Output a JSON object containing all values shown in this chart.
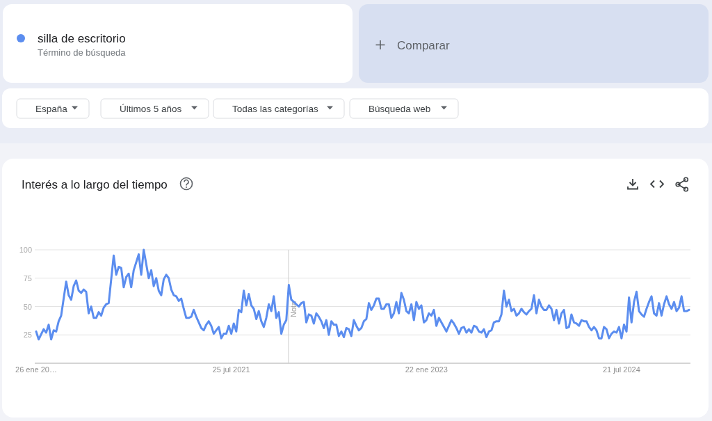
{
  "chart_data": {
    "type": "line",
    "title": "Interés a lo largo del tiempo",
    "x": [
      "2020-01-26",
      "2020-02-02",
      "2020-02-16",
      "2020-02-23",
      "2020-03-01",
      "2020-03-08",
      "2020-03-15",
      "2020-03-22",
      "2020-03-29",
      "2020-04-05",
      "2020-04-19",
      "2020-04-26",
      "2020-05-03",
      "2020-05-10",
      "2020-05-17",
      "2020-05-24",
      "2020-05-31",
      "2020-06-07",
      "2020-06-14",
      "2020-06-21",
      "2020-06-28",
      "2020-07-05",
      "2020-07-12",
      "2020-07-19",
      "2020-07-26",
      "2020-08-02",
      "2020-08-09",
      "2020-08-16",
      "2020-08-30",
      "2020-09-06",
      "2020-09-13",
      "2020-09-20",
      "2020-09-27",
      "2020-10-04",
      "2020-10-11",
      "2020-10-18",
      "2020-10-25",
      "2020-11-08",
      "2020-11-15",
      "2020-11-22",
      "2020-12-06",
      "2020-12-13",
      "2020-12-20",
      "2020-12-27",
      "2021-01-03",
      "2021-01-10",
      "2021-01-17",
      "2021-01-24",
      "2021-01-31",
      "2021-02-07",
      "2021-02-14",
      "2021-02-21",
      "2021-02-28",
      "2021-03-07",
      "2021-03-14",
      "2021-03-21",
      "2021-03-28",
      "2021-04-04",
      "2021-04-11",
      "2021-04-18",
      "2021-05-02",
      "2021-05-09",
      "2021-05-16",
      "2021-05-23",
      "2021-05-30",
      "2021-06-06",
      "2021-06-13",
      "2021-06-20",
      "2021-06-27",
      "2021-07-04",
      "2021-07-11",
      "2021-07-18",
      "2021-07-25",
      "2021-08-01",
      "2021-08-08",
      "2021-08-15",
      "2021-08-22",
      "2021-08-29",
      "2021-09-05",
      "2021-09-12",
      "2021-09-19",
      "2021-09-26",
      "2021-10-03",
      "2021-10-10",
      "2021-10-17",
      "2021-10-24",
      "2021-10-31",
      "2021-11-07",
      "2021-11-14",
      "2021-11-21",
      "2021-11-28",
      "2021-12-05",
      "2021-12-12",
      "2021-12-19",
      "2021-12-26",
      "2022-01-02",
      "2022-01-09",
      "2022-01-16",
      "2022-01-23",
      "2022-01-30",
      "2022-02-06",
      "2022-02-13",
      "2022-02-20",
      "2022-02-27",
      "2022-03-06",
      "2022-03-13",
      "2022-03-20",
      "2022-03-27",
      "2022-04-03",
      "2022-04-10",
      "2022-04-17",
      "2022-04-24",
      "2022-05-01",
      "2022-05-08",
      "2022-05-15",
      "2022-05-22",
      "2022-05-29",
      "2022-06-05",
      "2022-06-12",
      "2022-06-19",
      "2022-06-26",
      "2022-07-03",
      "2022-07-10",
      "2022-07-17",
      "2022-07-24",
      "2022-07-31",
      "2022-08-07",
      "2022-08-14",
      "2022-08-21",
      "2022-08-28",
      "2022-09-04",
      "2022-09-11",
      "2022-09-18",
      "2022-09-25",
      "2022-10-02",
      "2022-10-09",
      "2022-10-16",
      "2022-10-23",
      "2022-10-30",
      "2022-11-06",
      "2022-11-13",
      "2022-11-20",
      "2022-11-27",
      "2022-12-04",
      "2022-12-11",
      "2022-12-18",
      "2022-12-25",
      "2023-01-01",
      "2023-01-08",
      "2023-01-15",
      "2023-01-22",
      "2023-01-29",
      "2023-02-05",
      "2023-02-12",
      "2023-02-19",
      "2023-02-26",
      "2023-03-05",
      "2023-03-12",
      "2023-03-19",
      "2023-03-26",
      "2023-04-02",
      "2023-04-09",
      "2023-04-16",
      "2023-04-23",
      "2023-04-30",
      "2023-05-07",
      "2023-05-14",
      "2023-05-21",
      "2023-05-28",
      "2023-06-04",
      "2023-06-11",
      "2023-06-18",
      "2023-06-25",
      "2023-07-02",
      "2023-07-09",
      "2023-07-16",
      "2023-07-23",
      "2023-07-30",
      "2023-08-06",
      "2023-08-13",
      "2023-08-20",
      "2023-08-27",
      "2023-09-03",
      "2023-09-10",
      "2023-09-17",
      "2023-09-24",
      "2023-10-01",
      "2023-10-08",
      "2023-10-15",
      "2023-10-22",
      "2023-10-29",
      "2023-11-05",
      "2023-11-12",
      "2023-11-19",
      "2023-11-26",
      "2023-12-03",
      "2023-12-10",
      "2023-12-17",
      "2023-12-24",
      "2023-12-31",
      "2024-01-07",
      "2024-01-14",
      "2024-01-21",
      "2024-01-28",
      "2024-02-04",
      "2024-02-11",
      "2024-02-18",
      "2024-02-25",
      "2024-03-03",
      "2024-03-10",
      "2024-03-17",
      "2024-03-24",
      "2024-03-31",
      "2024-04-07",
      "2024-04-14",
      "2024-04-21",
      "2024-04-28",
      "2024-05-05",
      "2024-05-12",
      "2024-05-19",
      "2024-05-26",
      "2024-06-02",
      "2024-06-09",
      "2024-06-16",
      "2024-06-23",
      "2024-06-30",
      "2024-07-07",
      "2024-07-14",
      "2024-07-21",
      "2024-07-28",
      "2024-08-04",
      "2024-08-11",
      "2024-08-18",
      "2024-08-25",
      "2024-09-01",
      "2024-09-08",
      "2024-09-15",
      "2024-09-22",
      "2024-09-29",
      "2024-10-06",
      "2024-10-13",
      "2024-10-20",
      "2024-10-27",
      "2024-11-03",
      "2024-11-10",
      "2024-11-17",
      "2024-11-24",
      "2024-12-01",
      "2024-12-08",
      "2024-12-15",
      "2024-12-22",
      "2024-12-29",
      "2025-01-05",
      "2025-01-12",
      "2025-01-19",
      "2025-01-26"
    ],
    "series": [
      {
        "name": "silla de escritorio",
        "color": "#5b8def",
        "values": [
          28,
          21,
          30,
          27,
          34,
          21,
          29,
          28,
          37,
          42,
          72,
          60,
          56,
          68,
          73,
          64,
          62,
          65,
          63,
          44,
          50,
          40,
          40,
          45,
          42,
          49,
          52,
          53,
          95,
          78,
          85,
          84,
          67,
          76,
          79,
          67,
          82,
          96,
          78,
          100,
          75,
          82,
          68,
          75,
          64,
          60,
          74,
          78,
          75,
          65,
          60,
          59,
          55,
          57,
          48,
          40,
          40,
          41,
          47,
          41,
          31,
          29,
          34,
          37,
          33,
          26,
          29,
          32,
          22,
          26,
          26,
          33,
          26,
          35,
          28,
          47,
          45,
          64,
          51,
          61,
          51,
          48,
          39,
          46,
          37,
          32,
          40,
          52,
          46,
          59,
          40,
          45,
          26,
          34,
          38,
          69,
          56,
          54,
          52,
          50,
          53,
          54,
          36,
          43,
          42,
          35,
          44,
          41,
          37,
          31,
          38,
          25,
          37,
          34,
          34,
          24,
          28,
          23,
          31,
          30,
          24,
          38,
          33,
          29,
          31,
          37,
          39,
          53,
          47,
          51,
          57,
          57,
          48,
          48,
          52,
          52,
          40,
          44,
          54,
          44,
          62,
          56,
          46,
          44,
          52,
          38,
          54,
          48,
          51,
          36,
          38,
          44,
          42,
          47,
          33,
          40,
          36,
          32,
          28,
          33,
          38,
          35,
          31,
          26,
          31,
          32,
          27,
          30,
          27,
          33,
          32,
          28,
          27,
          30,
          23,
          28,
          29,
          36,
          37,
          37,
          43,
          64,
          50,
          56,
          46,
          48,
          42,
          44,
          48,
          45,
          43,
          46,
          48,
          60,
          44,
          56,
          50,
          47,
          47,
          51,
          48,
          38,
          47,
          35,
          44,
          47,
          31,
          32,
          43,
          36,
          35,
          33,
          38,
          37,
          37,
          32,
          29,
          32,
          29,
          22,
          22,
          32,
          30,
          22,
          26,
          28,
          27,
          32,
          22,
          34,
          28,
          58,
          36,
          54,
          63,
          46,
          43,
          41,
          48,
          54,
          59,
          44,
          42,
          53,
          42,
          52,
          59,
          52,
          48,
          54,
          46,
          49,
          59,
          46,
          46,
          47
        ]
      }
    ],
    "xlim": [
      "2020-01-26",
      "2025-01-26"
    ],
    "xticks": [
      {
        "value": "2020-01-26",
        "label": "26 ene 20…"
      },
      {
        "value": "2021-07-25",
        "label": "25 jul 2021"
      },
      {
        "value": "2023-01-22",
        "label": "22 ene 2023"
      },
      {
        "value": "2024-07-21",
        "label": "21 jul 2024"
      }
    ],
    "ylim": [
      0,
      100
    ],
    "yticks": [
      25,
      50,
      75,
      100
    ],
    "grid": "y",
    "legend": "top left",
    "ref_lines": [
      {
        "axis": "x",
        "value": "2022-01-01",
        "label": "Nota"
      }
    ],
    "annotations": [
      "Término de búsqueda",
      "Comparar",
      "España",
      "Últimos 5 años",
      "Todas las categorías",
      "Búsqueda web"
    ]
  }
}
